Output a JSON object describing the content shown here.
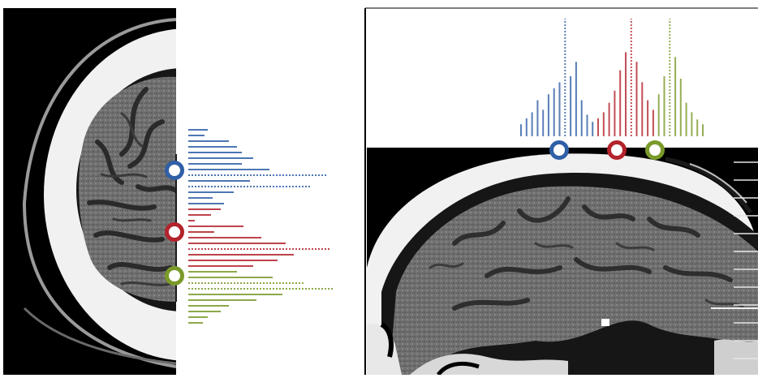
{
  "figure": {
    "colors": {
      "blue": "#2f5fa6",
      "red": "#b3232b",
      "green": "#7a9a2a",
      "marker_fill": "#ffffff",
      "scan_background": "#000000",
      "skull": "#f2f2f2",
      "brain": "#6f6f6f",
      "sulci": "#2a2a2a"
    },
    "axial_panel": {
      "markers": [
        {
          "name": "blue-marker",
          "color": "blue"
        },
        {
          "name": "red-marker",
          "color": "red"
        },
        {
          "name": "green-marker",
          "color": "green"
        }
      ],
      "profile_lines": [
        {
          "color": "blue",
          "length": 0.12
        },
        {
          "color": "blue",
          "length": 0.1
        },
        {
          "color": "blue",
          "length": 0.25
        },
        {
          "color": "blue",
          "length": 0.3
        },
        {
          "color": "blue",
          "length": 0.33
        },
        {
          "color": "blue",
          "length": 0.4
        },
        {
          "color": "blue",
          "length": 0.33
        },
        {
          "color": "blue",
          "length": 0.5
        },
        {
          "color": "blue",
          "length": 0.86
        },
        {
          "color": "blue",
          "length": 0.38
        },
        {
          "color": "blue",
          "length": 0.75
        },
        {
          "color": "blue",
          "length": 0.28
        },
        {
          "color": "blue",
          "length": 0.15
        },
        {
          "color": "blue",
          "length": 0.22
        },
        {
          "color": "red",
          "length": 0.2
        },
        {
          "color": "red",
          "length": 0.14
        },
        {
          "color": "red",
          "length": 0.04
        },
        {
          "color": "red",
          "length": 0.34
        },
        {
          "color": "red",
          "length": 0.16
        },
        {
          "color": "red",
          "length": 0.45
        },
        {
          "color": "red",
          "length": 0.6
        },
        {
          "color": "red",
          "length": 0.88
        },
        {
          "color": "red",
          "length": 0.65
        },
        {
          "color": "red",
          "length": 0.55
        },
        {
          "color": "red",
          "length": 0.4
        },
        {
          "color": "green",
          "length": 0.3
        },
        {
          "color": "green",
          "length": 0.52
        },
        {
          "color": "green",
          "length": 0.72
        },
        {
          "color": "green",
          "length": 0.9
        },
        {
          "color": "green",
          "length": 0.58
        },
        {
          "color": "green",
          "length": 0.42
        },
        {
          "color": "green",
          "length": 0.25
        },
        {
          "color": "green",
          "length": 0.2
        },
        {
          "color": "green",
          "length": 0.12
        },
        {
          "color": "green",
          "length": 0.09
        }
      ]
    },
    "sagittal_panel": {
      "markers": [
        {
          "name": "blue-marker",
          "color": "blue"
        },
        {
          "name": "red-marker",
          "color": "red"
        },
        {
          "name": "green-marker",
          "color": "green"
        }
      ],
      "profile_lines": [
        {
          "color": "blue",
          "length": 0.1
        },
        {
          "color": "blue",
          "length": 0.15
        },
        {
          "color": "blue",
          "length": 0.2
        },
        {
          "color": "blue",
          "length": 0.3
        },
        {
          "color": "blue",
          "length": 0.22
        },
        {
          "color": "blue",
          "length": 0.35
        },
        {
          "color": "blue",
          "length": 0.4
        },
        {
          "color": "blue",
          "length": 0.45
        },
        {
          "color": "blue",
          "length": 0.98
        },
        {
          "color": "blue",
          "length": 0.5
        },
        {
          "color": "blue",
          "length": 0.62
        },
        {
          "color": "blue",
          "length": 0.3
        },
        {
          "color": "blue",
          "length": 0.18
        },
        {
          "color": "blue",
          "length": 0.12
        },
        {
          "color": "red",
          "length": 0.15
        },
        {
          "color": "red",
          "length": 0.2
        },
        {
          "color": "red",
          "length": 0.28
        },
        {
          "color": "red",
          "length": 0.38
        },
        {
          "color": "red",
          "length": 0.55
        },
        {
          "color": "red",
          "length": 0.7
        },
        {
          "color": "red",
          "length": 0.98
        },
        {
          "color": "red",
          "length": 0.62
        },
        {
          "color": "red",
          "length": 0.45
        },
        {
          "color": "red",
          "length": 0.3
        },
        {
          "color": "red",
          "length": 0.22
        },
        {
          "color": "green",
          "length": 0.35
        },
        {
          "color": "green",
          "length": 0.5
        },
        {
          "color": "green",
          "length": 0.98
        },
        {
          "color": "green",
          "length": 0.66
        },
        {
          "color": "green",
          "length": 0.48
        },
        {
          "color": "green",
          "length": 0.28
        },
        {
          "color": "green",
          "length": 0.2
        },
        {
          "color": "green",
          "length": 0.14
        },
        {
          "color": "green",
          "length": 0.1
        }
      ]
    },
    "sagittal_tick_count": 12
  }
}
